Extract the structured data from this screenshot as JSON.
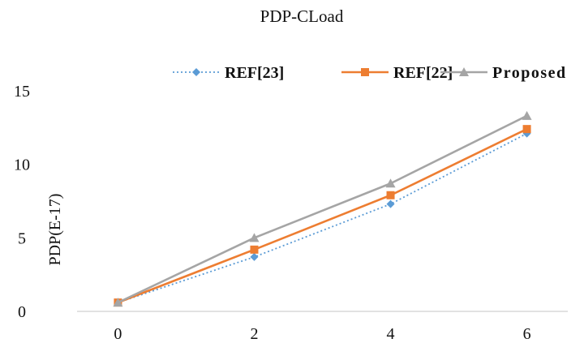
{
  "chart_data": {
    "type": "line",
    "title": "PDP-CLoad",
    "xlabel": "",
    "ylabel": "PDP(E-17)",
    "categories": [
      "0",
      "2",
      "4",
      "6"
    ],
    "x": [
      0,
      2,
      4,
      6
    ],
    "xlim": [
      -0.6,
      6.6
    ],
    "ylim": [
      0,
      15
    ],
    "yticks": [
      "0",
      "5",
      "10",
      "15"
    ],
    "grid": false,
    "legend_position": "top-right",
    "series": [
      {
        "name": "REF[23]",
        "values": [
          0.6,
          3.7,
          7.3,
          12.1
        ],
        "color": "#5b9bd5",
        "style": "dotted",
        "marker": "diamond"
      },
      {
        "name": "REF[22]",
        "values": [
          0.6,
          4.2,
          7.9,
          12.4
        ],
        "color": "#ed7d31",
        "style": "solid",
        "marker": "square"
      },
      {
        "name": "Proposed",
        "values": [
          0.6,
          5.0,
          8.7,
          13.3
        ],
        "color": "#a5a5a5",
        "style": "solid",
        "marker": "triangle"
      }
    ]
  }
}
